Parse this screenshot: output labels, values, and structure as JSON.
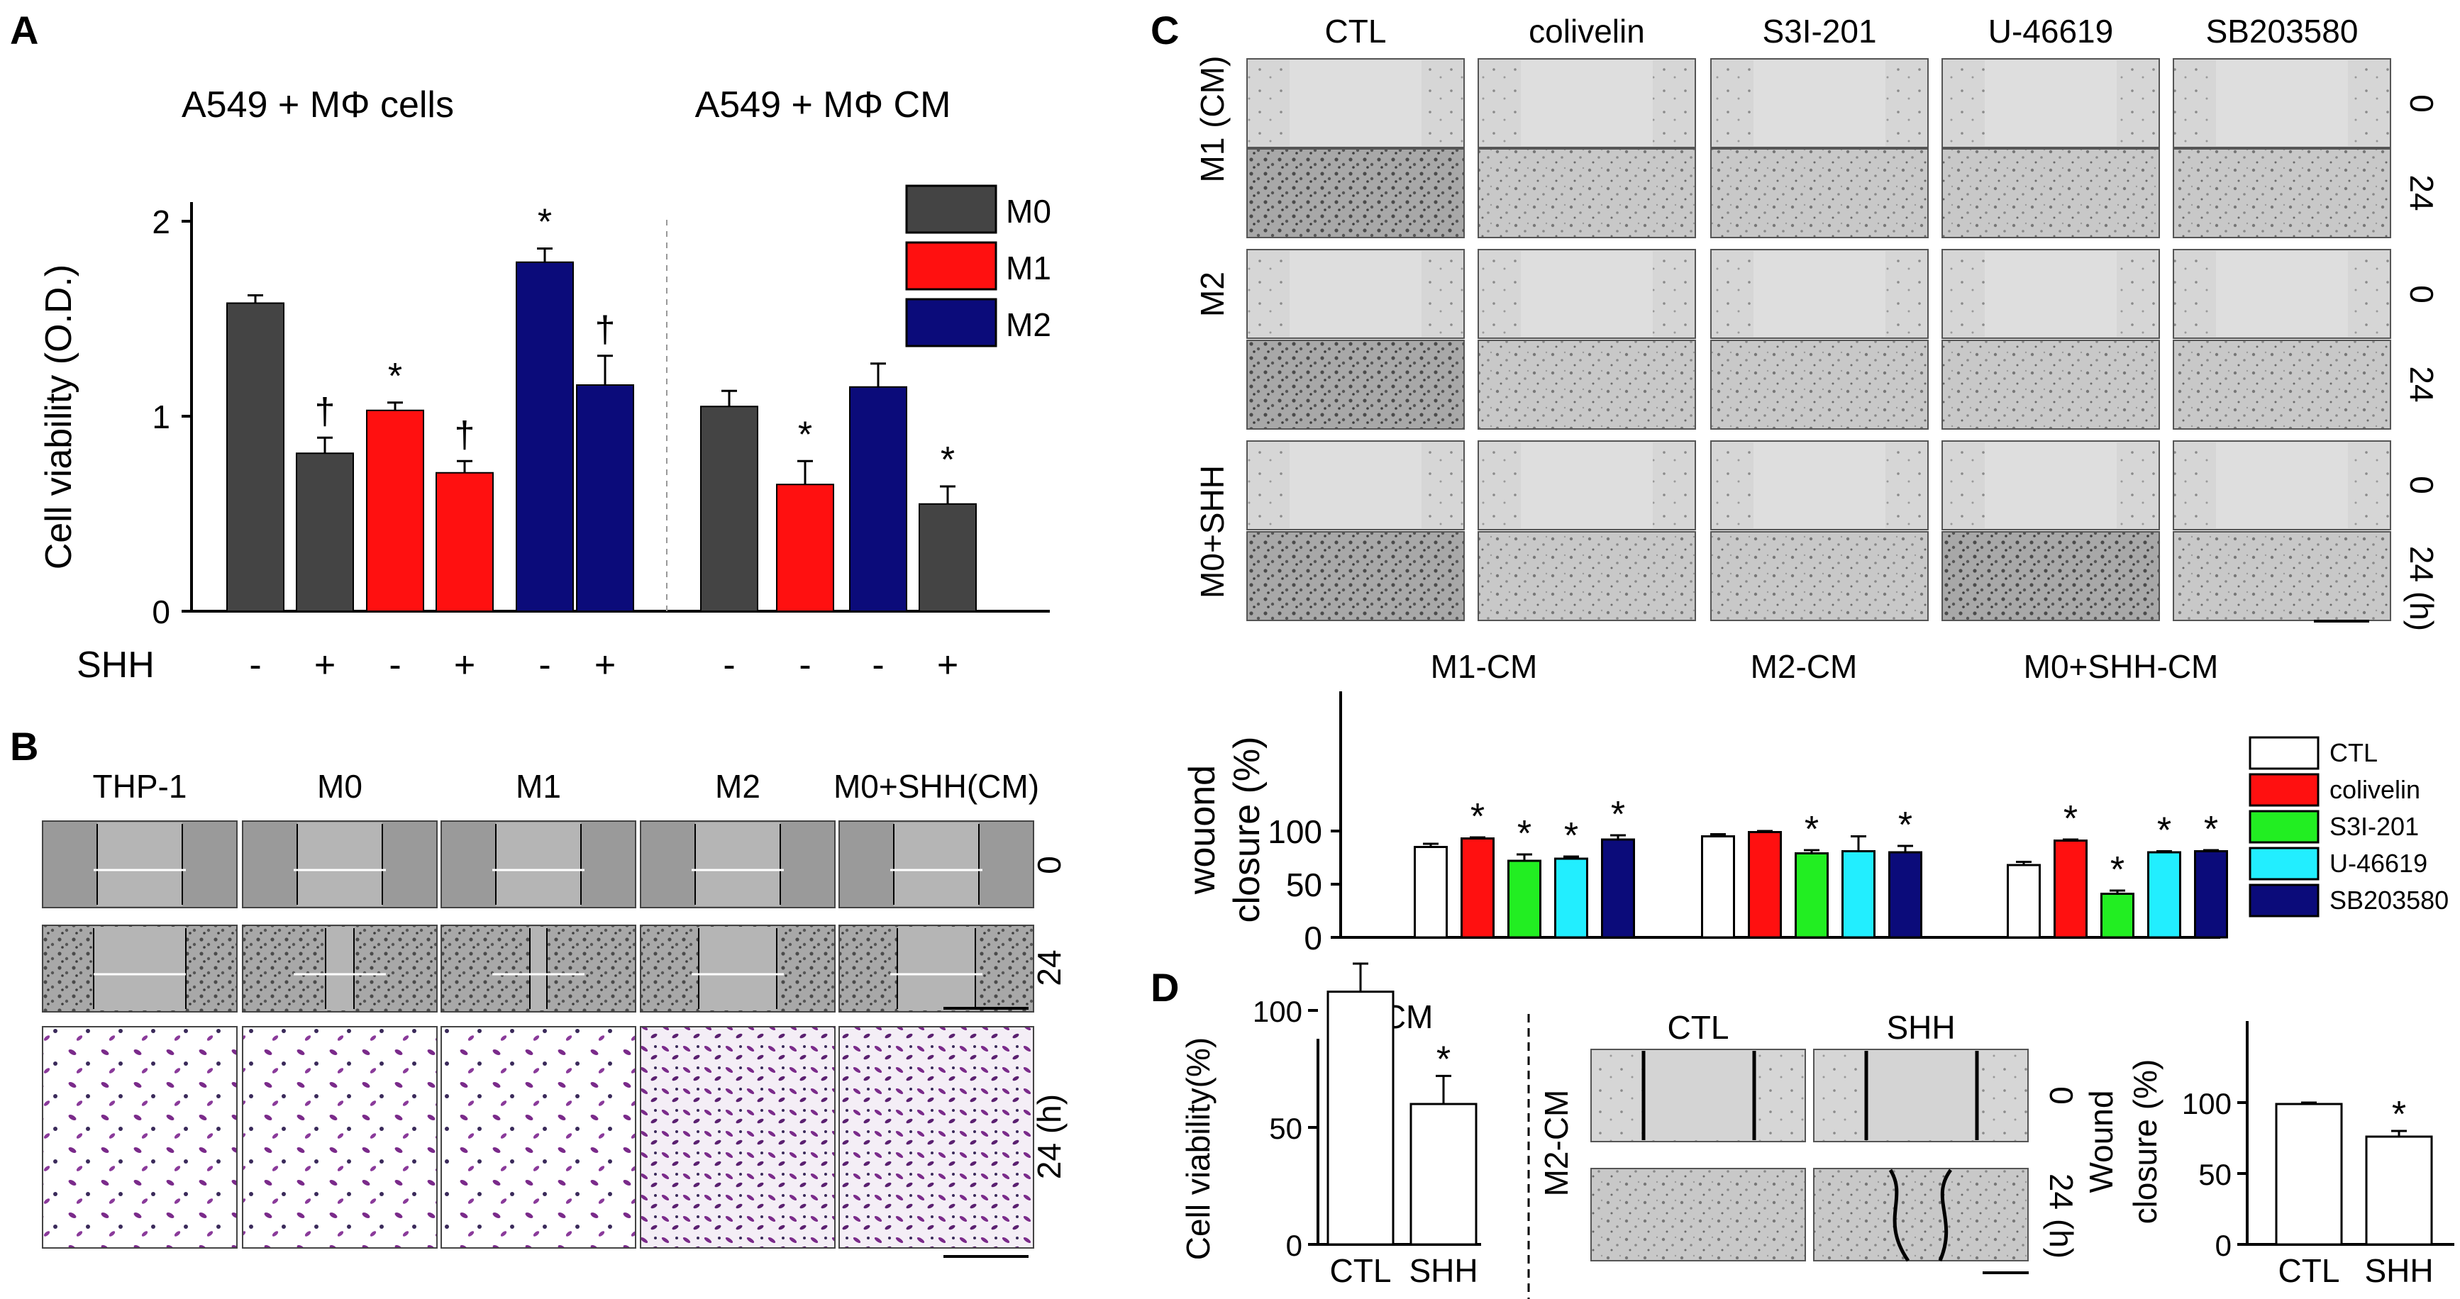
{
  "panels": {
    "A": "A",
    "B": "B",
    "C": "C",
    "D": "D"
  },
  "panelA": {
    "group_titles": [
      "A549 + MΦ cells",
      "A549 + MΦ CM"
    ],
    "row_label": "SHH",
    "shh_signs": [
      "-",
      "+",
      "-",
      "+",
      "-",
      "+",
      "-",
      "-",
      "-",
      "+"
    ],
    "bar_annotations": [
      "",
      "†",
      "*",
      "†",
      "*",
      "†",
      "",
      "*",
      "",
      "*"
    ]
  },
  "panelB": {
    "columns": [
      "THP-1",
      "M0",
      "M1",
      "M2",
      "M0+SHH(CM)"
    ],
    "row_labels": [
      "0",
      "24",
      "24  (h)"
    ]
  },
  "panelC": {
    "columns": [
      "CTL",
      "colivelin",
      "S3I-201",
      "U-46619",
      "SB203580"
    ],
    "row_groups": [
      "M1 (CM)",
      "M2",
      "M0+SHH"
    ],
    "time_labels": [
      "0",
      "24",
      "0",
      "24",
      "0",
      "24 (h)"
    ],
    "group_titles": [
      "M1-CM",
      "M2-CM",
      "M0+SHH-CM"
    ]
  },
  "panelD": {
    "left_title": "M2-CM",
    "image_columns": [
      "CTL",
      "SHH"
    ],
    "image_row_label": "M2-CM",
    "time_labels": [
      "0",
      "24 (h)"
    ]
  },
  "colors": {
    "M0": "#444444",
    "M1": "#ff1010",
    "M2": "#0b0b7a",
    "CTL": "#ffffff",
    "colivelin": "#ff1010",
    "S3I-201": "#22ee22",
    "U-46619": "#22eeff",
    "SB203580": "#0b0b7a",
    "stain": "#7a2a8a"
  },
  "chart_data": [
    {
      "type": "bar",
      "title": "",
      "ylabel": "Cell viability (O.D.)",
      "ylim": [
        0,
        2
      ],
      "yticks": [
        "0",
        "1",
        "2"
      ],
      "legend": [
        "M0",
        "M1",
        "M2"
      ],
      "legend_position": "top-right",
      "categories": [
        "M0 -",
        "M0 +",
        "M1 -",
        "M1 +",
        "M2 -",
        "M2 +",
        "CM M0",
        "CM M1",
        "CM M2",
        "CM M0+SHH"
      ],
      "series_colors": [
        "M0",
        "M0",
        "M1",
        "M1",
        "M2",
        "M2",
        "M0",
        "M1",
        "M2",
        "M0"
      ],
      "values": [
        1.58,
        0.81,
        1.03,
        0.71,
        1.79,
        1.16,
        1.05,
        0.65,
        1.15,
        0.55
      ],
      "errors": [
        0.04,
        0.08,
        0.04,
        0.06,
        0.07,
        0.15,
        0.08,
        0.12,
        0.12,
        0.09
      ]
    },
    {
      "type": "bar",
      "title": "",
      "ylabel": "wouond closure (%)",
      "ylim": [
        0,
        110
      ],
      "yticks": [
        "0",
        "50",
        "100"
      ],
      "legend": [
        "CTL",
        "colivelin",
        "S3I-201",
        "U-46619",
        "SB203580"
      ],
      "legend_position": "right",
      "groups": [
        "M1-CM",
        "M2-CM",
        "M0+SHH-CM"
      ],
      "series": [
        {
          "name": "CTL",
          "values": [
            85,
            95,
            68
          ],
          "errors": [
            3,
            2,
            3
          ]
        },
        {
          "name": "colivelin",
          "values": [
            93,
            99,
            91
          ],
          "errors": [
            1,
            1,
            1
          ]
        },
        {
          "name": "S3I-201",
          "values": [
            72,
            79,
            41
          ],
          "errors": [
            6,
            3,
            3
          ]
        },
        {
          "name": "U-46619",
          "values": [
            74,
            81,
            80
          ],
          "errors": [
            2,
            14,
            1
          ]
        },
        {
          "name": "SB203580",
          "values": [
            92,
            80,
            81
          ],
          "errors": [
            4,
            6,
            1
          ]
        }
      ],
      "star": [
        [
          false,
          true,
          true,
          true,
          true
        ],
        [
          false,
          false,
          true,
          false,
          true
        ],
        [
          false,
          true,
          true,
          true,
          true
        ]
      ]
    },
    {
      "type": "bar",
      "title": "M2-CM",
      "ylabel": "Cell viability(%)",
      "ylim": [
        0,
        130
      ],
      "yticks": [
        "0",
        "50",
        "100"
      ],
      "categories": [
        "CTL",
        "SHH"
      ],
      "values": [
        108,
        60
      ],
      "errors": [
        12,
        12
      ],
      "annotations": [
        "",
        "*"
      ]
    },
    {
      "type": "bar",
      "title": "",
      "ylabel": "Wound closure (%)",
      "ylim": [
        0,
        110
      ],
      "yticks": [
        "0",
        "50",
        "100"
      ],
      "categories": [
        "CTL",
        "SHH"
      ],
      "values": [
        99,
        76
      ],
      "errors": [
        1,
        4
      ],
      "annotations": [
        "",
        "*"
      ]
    }
  ]
}
